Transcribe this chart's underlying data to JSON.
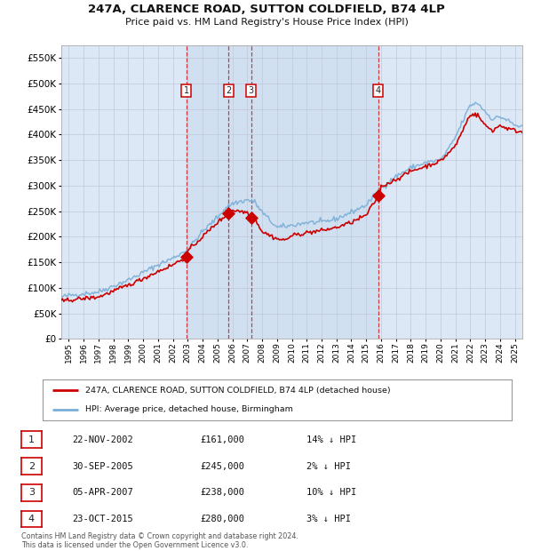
{
  "title1": "247A, CLARENCE ROAD, SUTTON COLDFIELD, B74 4LP",
  "title2": "Price paid vs. HM Land Registry's House Price Index (HPI)",
  "background_color": "#ffffff",
  "plot_bg_color": "#dce8f5",
  "grid_color": "#c0c8d8",
  "hpi_color": "#7aaed6",
  "price_color": "#cc0000",
  "ylim": [
    0,
    575000
  ],
  "yticks": [
    0,
    50000,
    100000,
    150000,
    200000,
    250000,
    300000,
    350000,
    400000,
    450000,
    500000,
    550000
  ],
  "xlim_start": 1994.5,
  "xlim_end": 2025.5,
  "xticks": [
    1995,
    1996,
    1997,
    1998,
    1999,
    2000,
    2001,
    2002,
    2003,
    2004,
    2005,
    2006,
    2007,
    2008,
    2009,
    2010,
    2011,
    2012,
    2013,
    2014,
    2015,
    2016,
    2017,
    2018,
    2019,
    2020,
    2021,
    2022,
    2023,
    2024,
    2025
  ],
  "sales": [
    {
      "num": 1,
      "date": "22-NOV-2002",
      "year": 2002.9,
      "price": 161000,
      "hpi_pct": "14% ↓ HPI"
    },
    {
      "num": 2,
      "date": "30-SEP-2005",
      "year": 2005.75,
      "price": 245000,
      "hpi_pct": "2% ↓ HPI"
    },
    {
      "num": 3,
      "date": "05-APR-2007",
      "year": 2007.27,
      "price": 238000,
      "hpi_pct": "10% ↓ HPI"
    },
    {
      "num": 4,
      "date": "23-OCT-2015",
      "year": 2015.82,
      "price": 280000,
      "hpi_pct": "3% ↓ HPI"
    }
  ],
  "legend_label_red": "247A, CLARENCE ROAD, SUTTON COLDFIELD, B74 4LP (detached house)",
  "legend_label_blue": "HPI: Average price, detached house, Birmingham",
  "footer": "Contains HM Land Registry data © Crown copyright and database right 2024.\nThis data is licensed under the Open Government Licence v3.0."
}
